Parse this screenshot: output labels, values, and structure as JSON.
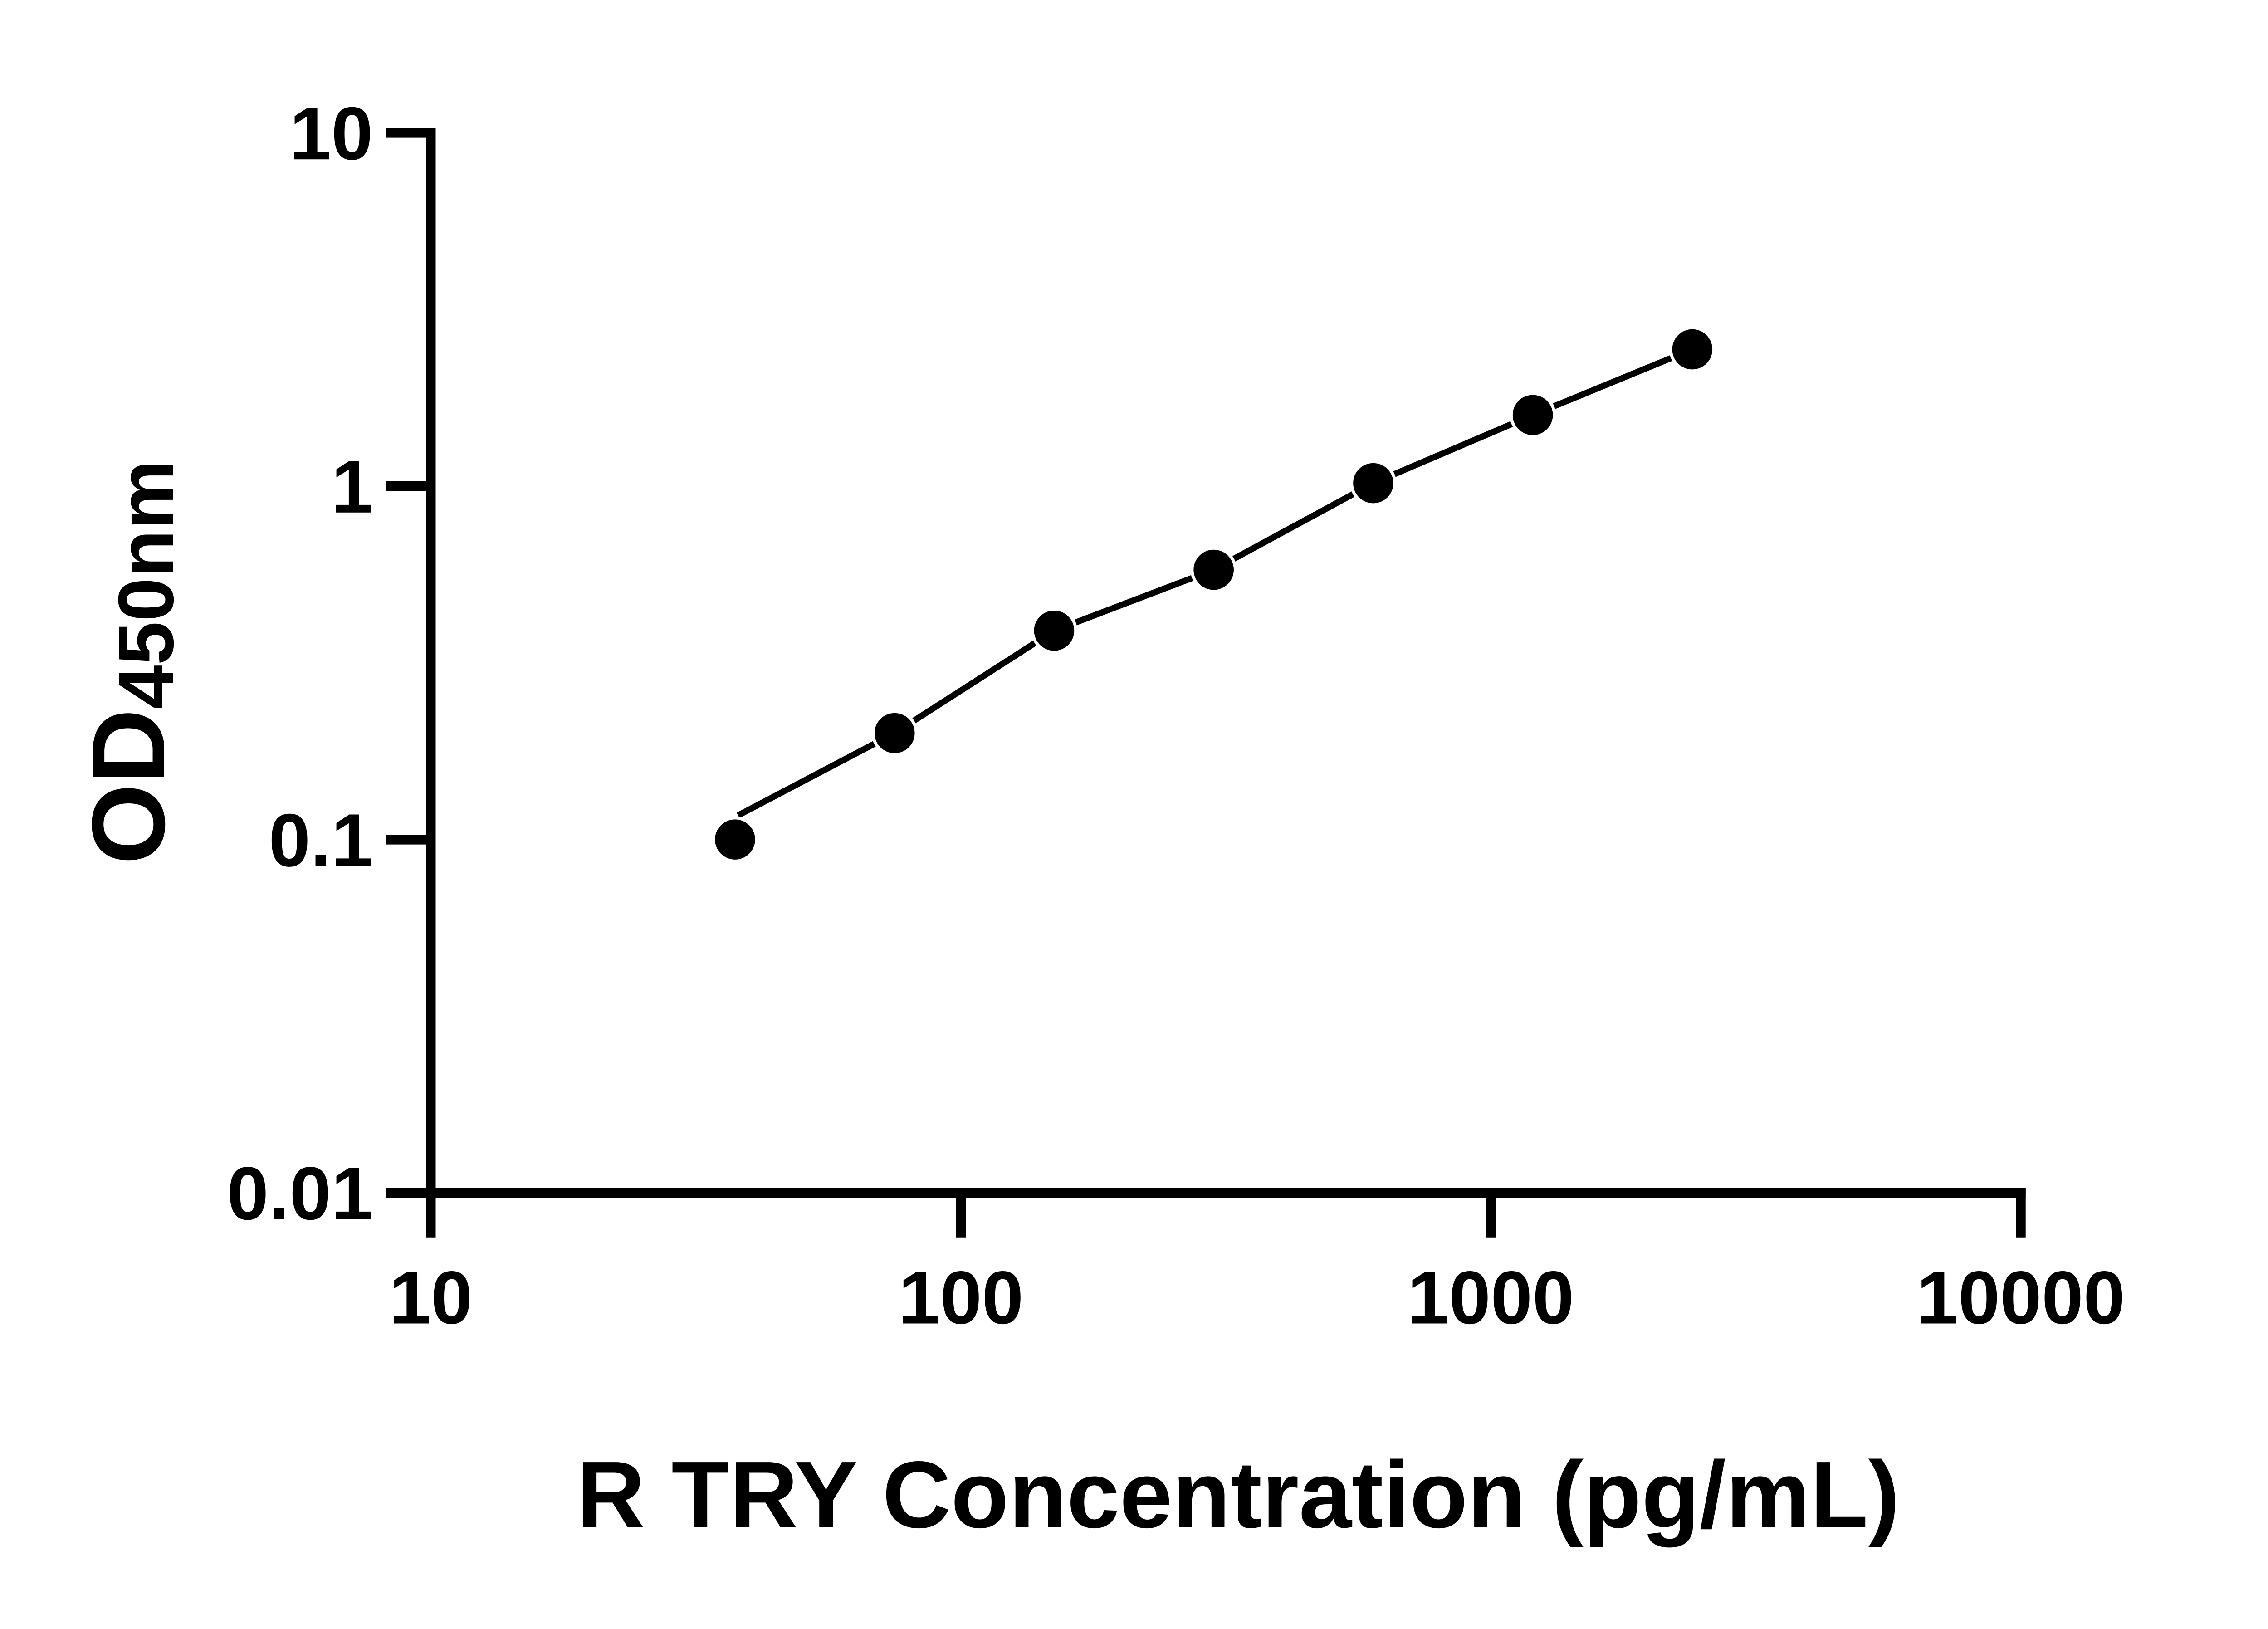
{
  "chart_data": {
    "type": "line",
    "subtype": "elisa-standard-curve",
    "x": [
      37.5,
      75,
      150,
      300,
      600,
      1200,
      2400
    ],
    "y": [
      0.1,
      0.2,
      0.39,
      0.58,
      1.02,
      1.59,
      2.44
    ],
    "fit_line_start": {
      "x": 38.0,
      "y": 0.117
    },
    "title": "",
    "xlabel": "R TRY Concentration (pg/mL)",
    "ylabel": "OD450nm",
    "ylabel_base": "OD",
    "ylabel_sub": "450nm",
    "xscale": "log",
    "yscale": "log",
    "xlim": [
      10,
      10000
    ],
    "ylim": [
      0.01,
      10
    ],
    "x_tick_labels": [
      "10",
      "100",
      "1000",
      "10000"
    ],
    "y_tick_labels": [
      "10",
      "1",
      "0.1",
      "0.01"
    ],
    "grid": false,
    "legend": false,
    "marker": "circle-filled",
    "colors": {
      "line": "#000000",
      "marker": "#000000",
      "axis": "#000000",
      "text": "#000000",
      "background": "#ffffff"
    }
  }
}
